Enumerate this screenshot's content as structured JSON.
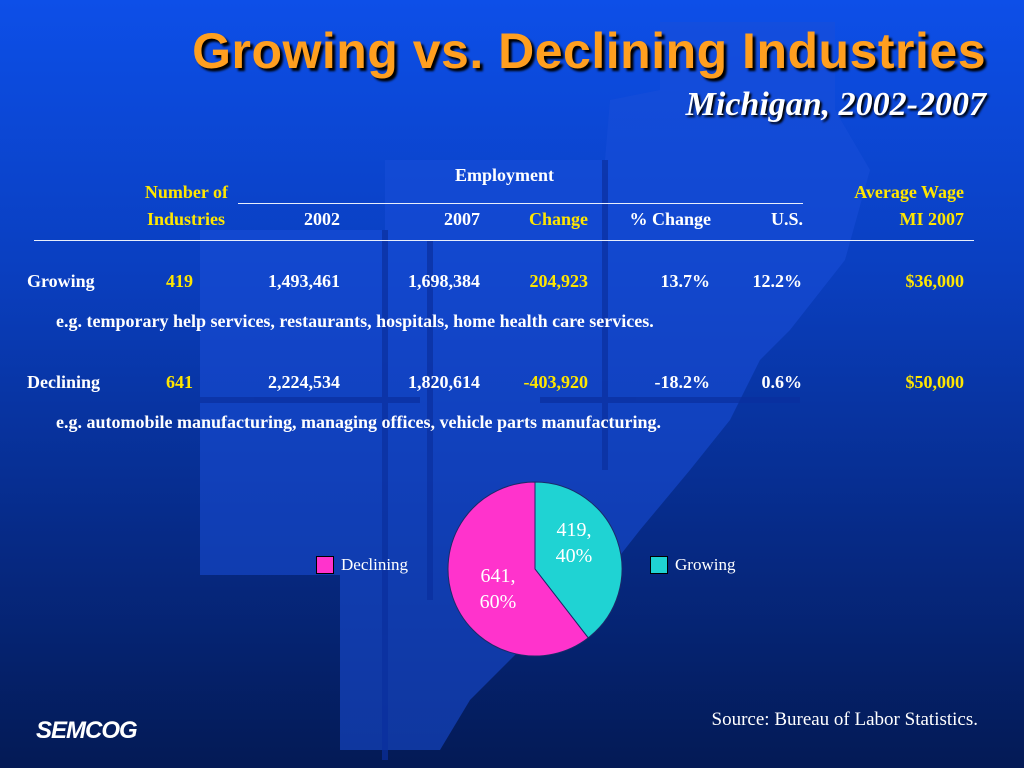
{
  "title": "Growing vs. Declining Industries",
  "subtitle": "Michigan, 2002-2007",
  "table": {
    "group_header": "Employment",
    "headers": {
      "num_line1": "Number of",
      "num_line2": "Industries",
      "y2002": "2002",
      "y2007": "2007",
      "change": "Change",
      "pct_change": "% Change",
      "us": "U.S.",
      "wage_line1": "Average Wage",
      "wage_line2": "MI 2007"
    },
    "rows": [
      {
        "label": "Growing",
        "num": "419",
        "y2002": "1,493,461",
        "y2007": "1,698,384",
        "change": "204,923",
        "pct": "13.7%",
        "us": "12.2%",
        "wage": "$36,000",
        "example": "e.g. temporary help services, restaurants, hospitals, home health care services."
      },
      {
        "label": "Declining",
        "num": "641",
        "y2002": "2,224,534",
        "y2007": "1,820,614",
        "change": "-403,920",
        "pct": "-18.2%",
        "us": "0.6%",
        "wage": "$50,000",
        "example": "e.g. automobile manufacturing, managing offices, vehicle parts manufacturing."
      }
    ]
  },
  "chart_data": {
    "type": "pie",
    "slices": [
      {
        "name": "Growing",
        "value": 419,
        "label_line1": "419,",
        "label_line2": "40%",
        "color": "#1fd3d3"
      },
      {
        "name": "Declining",
        "value": 641,
        "label_line1": "641,",
        "label_line2": "60%",
        "color": "#ff33cc"
      }
    ],
    "legend": [
      "Declining",
      "Growing"
    ]
  },
  "source": "Source: Bureau of Labor Statistics.",
  "logo": "SEMCOG",
  "colors": {
    "title": "#ff9f1f",
    "highlight": "#ffe600"
  }
}
